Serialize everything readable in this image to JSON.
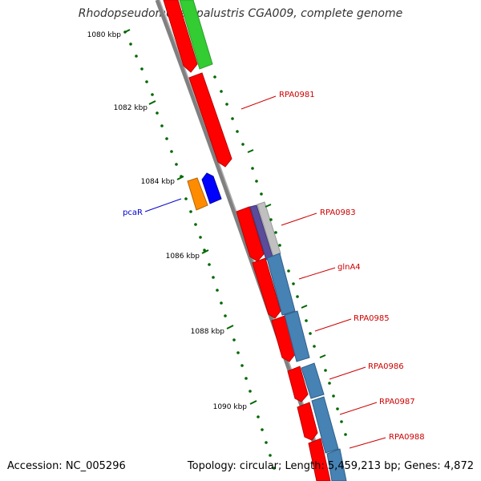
{
  "title": "Rhodopseudomonas palustris CGA009, complete genome",
  "footer": {
    "accession": "Accession: NC_005296",
    "summary": "Topology: circular; Length: 5,459,213 bp; Genes: 4,872"
  },
  "ruler_labels": [
    "1080 kbp",
    "1082 kbp",
    "1084 kbp",
    "1086 kbp",
    "1088 kbp",
    "1090 kbp"
  ],
  "gene_labels": [
    {
      "text": "RPA0981",
      "color": "#cc0000"
    },
    {
      "text": "RPA0983",
      "color": "#cc0000"
    },
    {
      "text": "glnA4",
      "color": "#cc0000"
    },
    {
      "text": "RPA0985",
      "color": "#cc0000"
    },
    {
      "text": "RPA0986",
      "color": "#cc0000"
    },
    {
      "text": "RPA0987",
      "color": "#cc0000"
    },
    {
      "text": "RPA0988",
      "color": "#cc0000"
    },
    {
      "text": "pcaR",
      "color": "#0000cc"
    }
  ],
  "colors": {
    "backbone": "#808080",
    "cds": "#ff0000",
    "green_feature": "#33cc33",
    "blue_feature": "#4682b4",
    "ruler_dots": "#006600",
    "orange_feature": "#ff8c00",
    "dark_blue_feature": "#0000ff"
  }
}
